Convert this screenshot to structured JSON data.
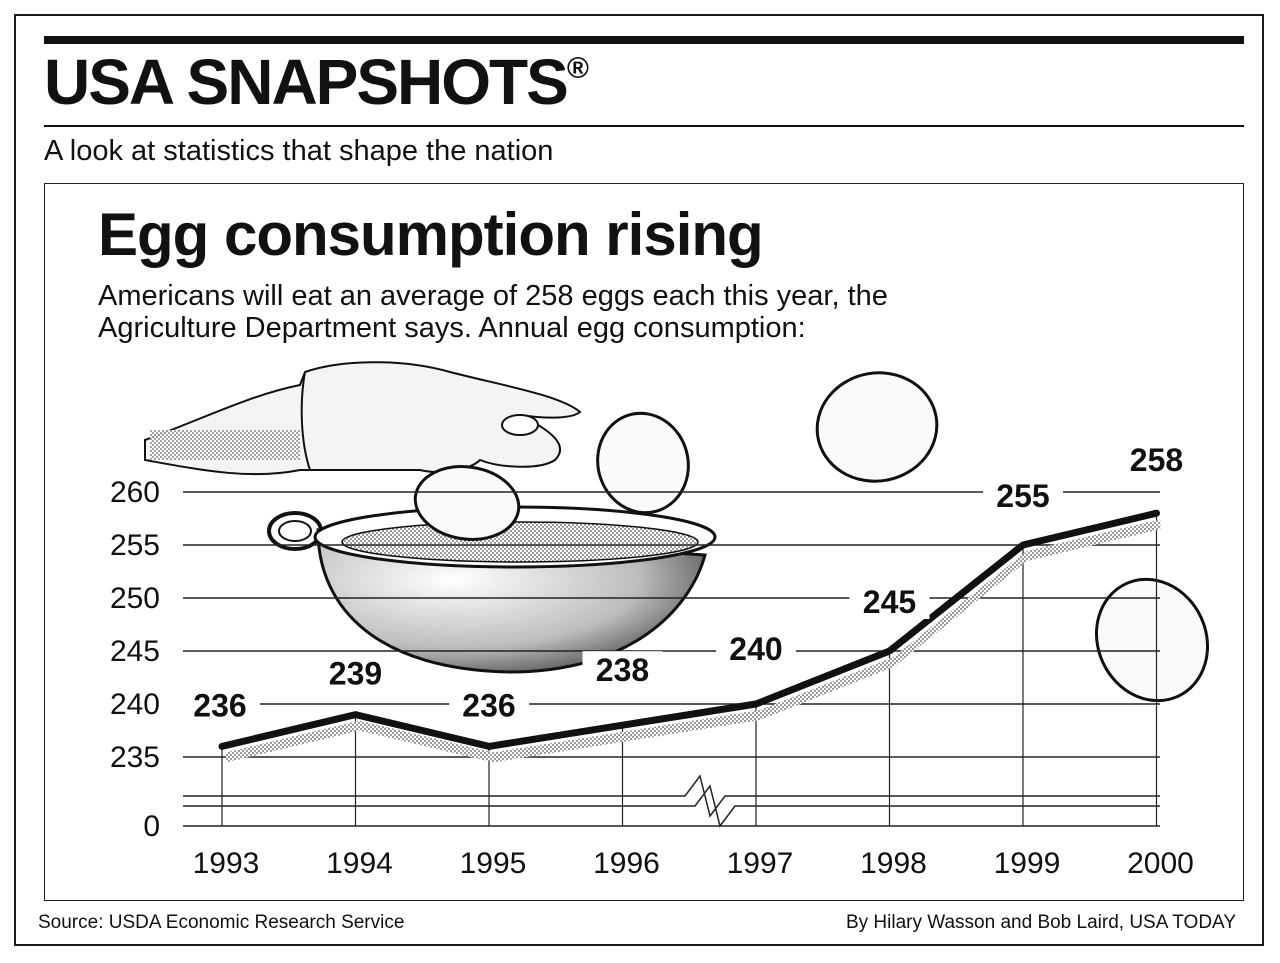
{
  "header": {
    "masthead": "USA SNAPSHOTS",
    "registered_mark": "®",
    "tagline": "A look at statistics that shape the nation"
  },
  "chart_data": {
    "type": "line",
    "title": "Egg consumption rising",
    "subtitle_line1": "Americans will eat an average of 258 eggs each this year, the",
    "subtitle_line2": "Agriculture Department says. Annual egg consumption:",
    "categories": [
      "1993",
      "1994",
      "1995",
      "1996",
      "1997",
      "1998",
      "1999",
      "2000"
    ],
    "series": [
      {
        "values": [
          236,
          239,
          236,
          238,
          240,
          245,
          255,
          258
        ]
      }
    ],
    "data_labels": [
      "236",
      "239",
      "236",
      "238",
      "240",
      "245",
      "255",
      "258"
    ],
    "y_ticks": [
      "260",
      "255",
      "250",
      "245",
      "240",
      "235",
      "0"
    ],
    "ylim": [
      235,
      260
    ],
    "axis_break": true,
    "grid": true,
    "line_color": "#111111"
  },
  "footer": {
    "source": "Source: USDA Economic Research Service",
    "credit": "By Hilary Wasson and Bob Laird, USA TODAY"
  }
}
